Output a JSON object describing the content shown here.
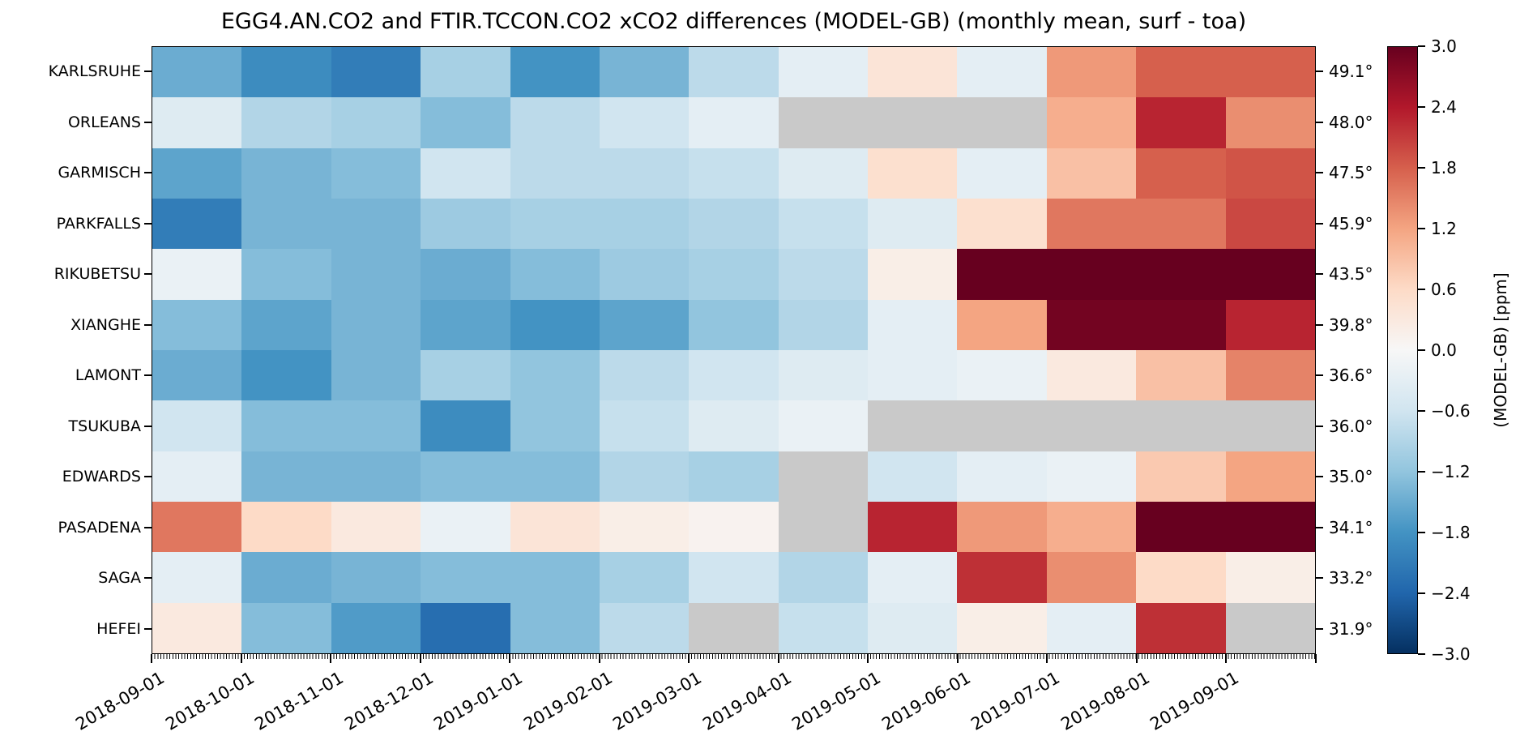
{
  "title": "EGG4.AN.CO2 and FTIR.TCCON.CO2 xCO2 differences (MODEL-GB) (monthly mean, surf - toa)",
  "colorbar": {
    "label": "(MODEL-GB) [ppm]",
    "tick_labels": [
      "3.0",
      "2.4",
      "1.8",
      "1.2",
      "0.6",
      "0.0",
      "−0.6",
      "−1.2",
      "−1.8",
      "−2.4",
      "−3.0"
    ]
  },
  "chart_data": {
    "type": "heatmap",
    "title": "EGG4.AN.CO2 and FTIR.TCCON.CO2 xCO2 differences (MODEL-GB) (monthly mean, surf - toa)",
    "rows": [
      "KARLSRUHE",
      "ORLEANS",
      "GARMISCH",
      "PARKFALLS",
      "RIKUBETSU",
      "XIANGHE",
      "LAMONT",
      "TSUKUBA",
      "EDWARDS",
      "PASADENA",
      "SAGA",
      "HEFEI"
    ],
    "row_latitudes": [
      "49.1°",
      "48.0°",
      "47.5°",
      "45.9°",
      "43.5°",
      "39.8°",
      "36.6°",
      "36.0°",
      "35.0°",
      "34.1°",
      "33.2°",
      "31.9°"
    ],
    "columns": [
      "2018-09-01",
      "2018-10-01",
      "2018-11-01",
      "2018-12-01",
      "2019-01-01",
      "2019-02-01",
      "2019-03-01",
      "2019-04-01",
      "2019-05-01",
      "2019-06-01",
      "2019-07-01",
      "2019-08-01",
      "2019-09-01"
    ],
    "values": [
      [
        -1.5,
        -1.9,
        -2.1,
        -1.0,
        -1.8,
        -1.4,
        -0.8,
        -0.3,
        0.4,
        -0.3,
        1.3,
        1.8,
        1.8
      ],
      [
        -0.4,
        -0.9,
        -1.0,
        -1.3,
        -0.8,
        -0.6,
        -0.3,
        null,
        null,
        null,
        1.1,
        2.3,
        1.4
      ],
      [
        -1.6,
        -1.4,
        -1.3,
        -0.6,
        -0.8,
        -0.8,
        -0.7,
        -0.4,
        0.5,
        -0.3,
        0.9,
        1.8,
        1.9
      ],
      [
        -2.1,
        -1.4,
        -1.4,
        -1.1,
        -1.0,
        -1.0,
        -0.9,
        -0.7,
        -0.4,
        0.5,
        1.6,
        1.6,
        2.0
      ],
      [
        -0.2,
        -1.3,
        -1.4,
        -1.5,
        -1.3,
        -1.1,
        -1.0,
        -0.8,
        0.2,
        3.0,
        3.0,
        3.0,
        3.0
      ],
      [
        -1.3,
        -1.6,
        -1.4,
        -1.6,
        -1.8,
        -1.6,
        -1.2,
        -0.9,
        -0.3,
        1.2,
        2.9,
        2.9,
        2.3
      ],
      [
        -1.5,
        -1.8,
        -1.4,
        -1.0,
        -1.2,
        -0.8,
        -0.6,
        -0.4,
        -0.3,
        -0.2,
        0.3,
        0.9,
        1.5
      ],
      [
        -0.6,
        -1.3,
        -1.3,
        -1.9,
        -1.2,
        -0.7,
        -0.4,
        -0.2,
        null,
        null,
        null,
        null,
        null
      ],
      [
        -0.3,
        -1.4,
        -1.4,
        -1.3,
        -1.3,
        -0.9,
        -1.0,
        null,
        -0.6,
        -0.3,
        -0.2,
        0.8,
        1.2
      ],
      [
        1.6,
        0.6,
        0.3,
        -0.2,
        0.4,
        0.2,
        0.1,
        null,
        2.3,
        1.3,
        1.1,
        3.0,
        3.0
      ],
      [
        -0.3,
        -1.5,
        -1.4,
        -1.3,
        -1.3,
        -1.0,
        -0.6,
        -0.9,
        -0.3,
        2.2,
        1.4,
        0.6,
        0.2
      ],
      [
        0.3,
        -1.3,
        -1.7,
        -2.3,
        -1.3,
        -0.8,
        null,
        -0.7,
        -0.4,
        0.2,
        -0.3,
        2.2,
        null
      ]
    ],
    "vmin": -3.0,
    "vmax": 3.0,
    "colormap": "RdBu_r",
    "colormap_anchors_low_to_high": [
      "#053061",
      "#2166ac",
      "#4393c3",
      "#92c5de",
      "#d1e5f0",
      "#f7f7f7",
      "#fddbc7",
      "#f4a582",
      "#d6604d",
      "#b2182b",
      "#67001f"
    ],
    "missing_color": "#c9c9c9",
    "colorbar_label": "(MODEL-GB) [ppm]",
    "colorbar_ticks": [
      3.0,
      2.4,
      1.8,
      1.2,
      0.6,
      0.0,
      -0.6,
      -1.2,
      -1.8,
      -2.4,
      -3.0
    ],
    "xlabel": "",
    "ylabel": "",
    "grid": false,
    "legend_position": "colorbar-right"
  }
}
